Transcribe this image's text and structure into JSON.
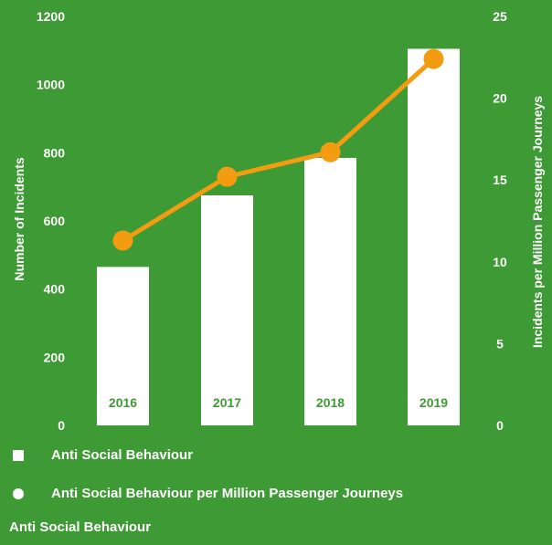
{
  "chart_data": {
    "type": "bar+line",
    "categories": [
      "2016",
      "2017",
      "2018",
      "2019"
    ],
    "series": [
      {
        "name": "Anti Social Behaviour",
        "type": "bar",
        "axis": "left",
        "values": [
          465,
          675,
          785,
          1105
        ]
      },
      {
        "name": "Anti Social Behaviour per Million Passenger Journeys",
        "type": "line",
        "axis": "right",
        "values": [
          11.3,
          15.2,
          16.7,
          22.4
        ]
      }
    ],
    "y_left": {
      "label": "Number of Incidents",
      "min": 0,
      "max": 1200,
      "ticks": [
        "0",
        "200",
        "400",
        "600",
        "800",
        "1000",
        "1200"
      ]
    },
    "y_right": {
      "label": "Incidents per Million Passenger Journeys",
      "min": 0,
      "max": 25,
      "ticks": [
        "0",
        "5",
        "10",
        "15",
        "20",
        "25"
      ]
    },
    "grid": false,
    "legend_placement": "bottom-left",
    "colors": {
      "background": "#3e9a34",
      "bar": "#ffffff",
      "line": "#f39c12",
      "category_label": "#3e9a34"
    }
  },
  "legend": {
    "items": [
      {
        "label": "Anti Social Behaviour",
        "marker": "square"
      },
      {
        "label": "Anti Social Behaviour per Million Passenger Journeys",
        "marker": "circle"
      }
    ]
  },
  "footer": {
    "title": "Anti Social Behaviour"
  }
}
